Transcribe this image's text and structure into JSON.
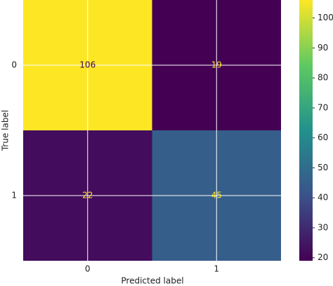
{
  "chart_data": {
    "type": "heatmap",
    "x_categories": [
      "0",
      "1"
    ],
    "y_categories": [
      "0",
      "1"
    ],
    "values": [
      [
        106,
        19
      ],
      [
        22,
        45
      ]
    ],
    "xlabel": "Predicted label",
    "ylabel": "True label",
    "cmap": "viridis",
    "grid": true,
    "colorbar": {
      "lim": [
        19,
        106
      ],
      "ticks": [
        20,
        30,
        40,
        50,
        60,
        70,
        80,
        90,
        100
      ]
    }
  }
}
